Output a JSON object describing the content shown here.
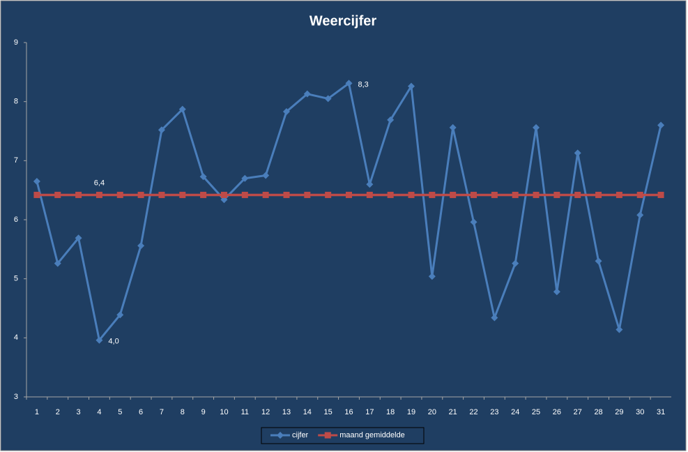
{
  "chart_data": {
    "type": "line",
    "title": "Weercijfer",
    "categories": [
      "1",
      "2",
      "3",
      "4",
      "5",
      "6",
      "7",
      "8",
      "9",
      "10",
      "11",
      "12",
      "13",
      "14",
      "15",
      "16",
      "17",
      "18",
      "19",
      "20",
      "21",
      "22",
      "23",
      "24",
      "25",
      "26",
      "27",
      "28",
      "29",
      "30",
      "31"
    ],
    "series": [
      {
        "name": "cijfer",
        "color": "#4a7ebb",
        "marker": "diamond",
        "values": [
          6.65,
          5.26,
          5.69,
          3.96,
          4.39,
          5.56,
          7.52,
          7.87,
          6.73,
          6.34,
          6.7,
          6.75,
          7.83,
          8.13,
          8.05,
          8.31,
          6.6,
          7.69,
          8.26,
          5.04,
          7.56,
          5.96,
          4.34,
          5.26,
          7.56,
          4.78,
          7.13,
          5.3,
          4.14,
          6.08,
          7.6
        ],
        "value_labels": [
          null,
          null,
          null,
          "4,0",
          null,
          null,
          null,
          null,
          null,
          null,
          null,
          null,
          null,
          null,
          null,
          "8,3",
          null,
          null,
          null,
          null,
          null,
          null,
          null,
          null,
          null,
          null,
          null,
          null,
          null,
          null,
          null
        ]
      },
      {
        "name": "maand gemiddelde",
        "color": "#be4b48",
        "marker": "square",
        "values": [
          6.42,
          6.42,
          6.42,
          6.42,
          6.42,
          6.42,
          6.42,
          6.42,
          6.42,
          6.42,
          6.42,
          6.42,
          6.42,
          6.42,
          6.42,
          6.42,
          6.42,
          6.42,
          6.42,
          6.42,
          6.42,
          6.42,
          6.42,
          6.42,
          6.42,
          6.42,
          6.42,
          6.42,
          6.42,
          6.42,
          6.42
        ],
        "value_labels": [
          null,
          null,
          null,
          "6,4",
          null,
          null,
          null,
          null,
          null,
          null,
          null,
          null,
          null,
          null,
          null,
          null,
          null,
          null,
          null,
          null,
          null,
          null,
          null,
          null,
          null,
          null,
          null,
          null,
          null,
          null,
          null
        ]
      }
    ],
    "ylim": [
      3,
      9
    ],
    "yticks": [
      3,
      4,
      5,
      6,
      7,
      8,
      9
    ],
    "grid": false,
    "legend": "bottom"
  }
}
